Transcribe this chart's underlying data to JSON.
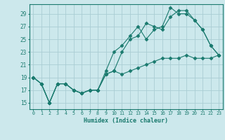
{
  "xlabel": "Humidex (Indice chaleur)",
  "bg_color": "#cce8ec",
  "grid_color": "#aacdd4",
  "line_color": "#1a7a6e",
  "xlim": [
    -0.5,
    23.5
  ],
  "ylim": [
    14,
    30.5
  ],
  "yticks": [
    15,
    17,
    19,
    21,
    23,
    25,
    27,
    29
  ],
  "xticks": [
    0,
    1,
    2,
    3,
    4,
    5,
    6,
    7,
    8,
    9,
    10,
    11,
    12,
    13,
    14,
    15,
    16,
    17,
    18,
    19,
    20,
    21,
    22,
    23
  ],
  "line1_x": [
    0,
    1,
    2,
    3,
    4,
    5,
    6,
    7,
    8,
    9,
    10,
    11,
    12,
    13,
    14,
    15,
    16,
    17,
    18,
    19,
    20,
    21,
    22,
    23
  ],
  "line1_y": [
    19,
    18,
    15,
    18,
    18,
    17,
    16.5,
    17,
    17,
    19.5,
    20,
    19.5,
    20,
    20.5,
    21,
    21.5,
    22,
    22,
    22,
    22.5,
    22,
    22,
    22,
    22.5
  ],
  "line2_x": [
    0,
    1,
    2,
    3,
    4,
    5,
    6,
    7,
    8,
    9,
    10,
    11,
    12,
    13,
    14,
    15,
    16,
    17,
    18,
    19,
    20,
    21,
    22,
    23
  ],
  "line2_y": [
    19,
    18,
    15,
    18,
    18,
    17,
    16.5,
    17,
    17,
    20,
    23,
    24,
    25.5,
    27,
    25,
    26.5,
    27,
    30,
    29,
    29,
    28,
    26.5,
    24,
    22.5
  ],
  "line3_x": [
    0,
    1,
    2,
    3,
    4,
    5,
    6,
    7,
    8,
    9,
    10,
    11,
    12,
    13,
    14,
    15,
    16,
    17,
    18,
    19,
    20,
    21,
    22,
    23
  ],
  "line3_y": [
    19,
    18,
    15,
    18,
    18,
    17,
    16.5,
    17,
    17,
    19.5,
    20,
    23,
    25,
    25.5,
    27.5,
    27,
    26.5,
    28.5,
    29.5,
    29.5,
    28,
    26.5,
    24,
    22.5
  ]
}
